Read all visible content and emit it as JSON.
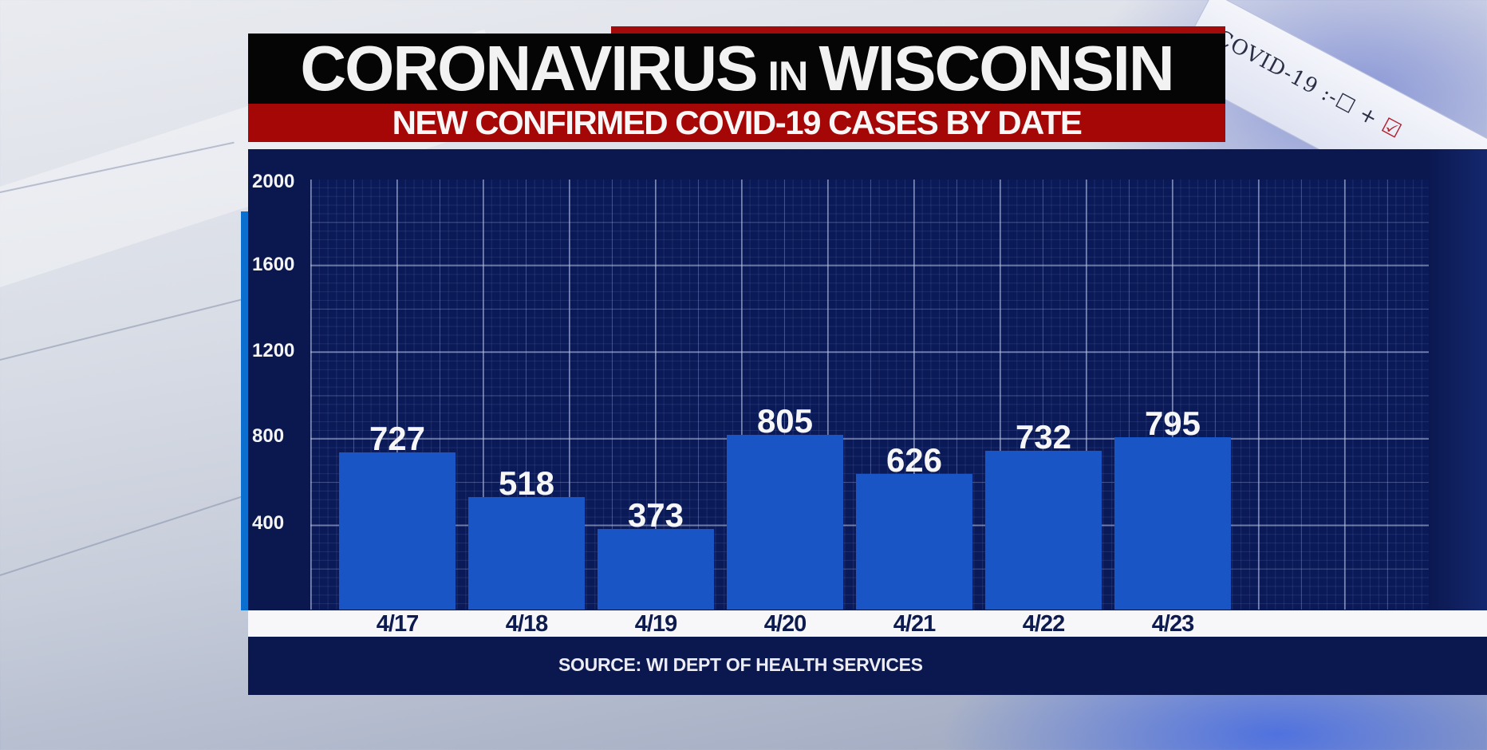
{
  "header": {
    "title_part1": "CORONAVIRUS",
    "title_connector": "IN",
    "title_part2": "WISCONSIN",
    "subtitle": "NEW CONFIRMED COVID-19 CASES BY DATE"
  },
  "decor": {
    "test_strip_text": "COVID-19 :-☐ +",
    "test_strip_check": "☑"
  },
  "footer": {
    "source": "SOURCE: WI DEPT OF HEALTH SERVICES"
  },
  "colors": {
    "title_bar": "#050505",
    "subtitle_bar": "#a50606",
    "panel": "#0b1850",
    "bar": "#1a55c6",
    "accent": "#0a6fcf",
    "xlabel_text": "#0d1b4e"
  },
  "chart_data": {
    "type": "bar",
    "title": "CORONAVIRUS IN WISCONSIN",
    "subtitle": "NEW CONFIRMED COVID-19 CASES BY DATE",
    "categories": [
      "4/17",
      "4/18",
      "4/19",
      "4/20",
      "4/21",
      "4/22",
      "4/23"
    ],
    "values": [
      727,
      518,
      373,
      805,
      626,
      732,
      795
    ],
    "xlabel": "",
    "ylabel": "",
    "ylim": [
      0,
      2000
    ],
    "yticks": [
      "2000",
      "1600",
      "1200",
      "800",
      "400"
    ],
    "grid": true,
    "legend": null,
    "data_labels": true,
    "source": "SOURCE: WI DEPT OF HEALTH SERVICES"
  }
}
